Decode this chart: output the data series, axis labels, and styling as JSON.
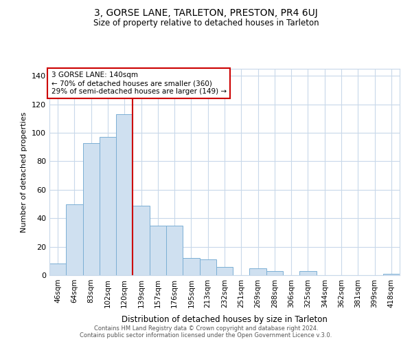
{
  "title": "3, GORSE LANE, TARLETON, PRESTON, PR4 6UJ",
  "subtitle": "Size of property relative to detached houses in Tarleton",
  "xlabel": "Distribution of detached houses by size in Tarleton",
  "ylabel": "Number of detached properties",
  "bar_labels": [
    "46sqm",
    "64sqm",
    "83sqm",
    "102sqm",
    "120sqm",
    "139sqm",
    "157sqm",
    "176sqm",
    "195sqm",
    "213sqm",
    "232sqm",
    "251sqm",
    "269sqm",
    "288sqm",
    "306sqm",
    "325sqm",
    "344sqm",
    "362sqm",
    "381sqm",
    "399sqm",
    "418sqm"
  ],
  "bar_values": [
    8,
    50,
    93,
    97,
    113,
    49,
    35,
    35,
    12,
    11,
    6,
    0,
    5,
    3,
    0,
    3,
    0,
    0,
    0,
    0,
    1
  ],
  "bar_color": "#cfe0f0",
  "bar_edge_color": "#7bafd4",
  "vline_index": 5,
  "vline_color": "#cc0000",
  "ylim": [
    0,
    145
  ],
  "yticks": [
    0,
    20,
    40,
    60,
    80,
    100,
    120,
    140
  ],
  "annotation_title": "3 GORSE LANE: 140sqm",
  "annotation_line1": "← 70% of detached houses are smaller (360)",
  "annotation_line2": "29% of semi-detached houses are larger (149) →",
  "annotation_box_color": "#ffffff",
  "annotation_box_edge": "#cc0000",
  "footer1": "Contains HM Land Registry data © Crown copyright and database right 2024.",
  "footer2": "Contains public sector information licensed under the Open Government Licence v.3.0.",
  "background_color": "#ffffff",
  "grid_color": "#c8d8ea"
}
